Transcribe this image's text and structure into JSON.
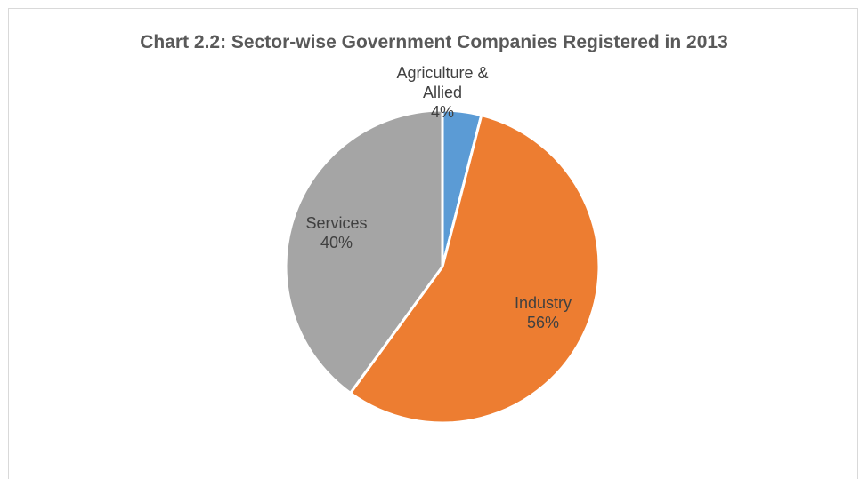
{
  "chart_data": {
    "type": "pie",
    "title": "Chart 2.2: Sector-wise Government Companies Registered in 2013",
    "categories": [
      "Agriculture & Allied",
      "Industry",
      "Services"
    ],
    "values": [
      4,
      56,
      40
    ],
    "value_suffix": "%",
    "colors": [
      "#5b9bd5",
      "#ed7d31",
      "#a5a5a5"
    ],
    "start_angle_deg": 0,
    "direction": "clockwise",
    "data_labels": [
      {
        "lines": [
          "Agriculture &",
          "Allied"
        ],
        "value": "4%"
      },
      {
        "lines": [
          "Industry"
        ],
        "value": "56%"
      },
      {
        "lines": [
          "Services"
        ],
        "value": "40%"
      }
    ],
    "legend": "none"
  }
}
